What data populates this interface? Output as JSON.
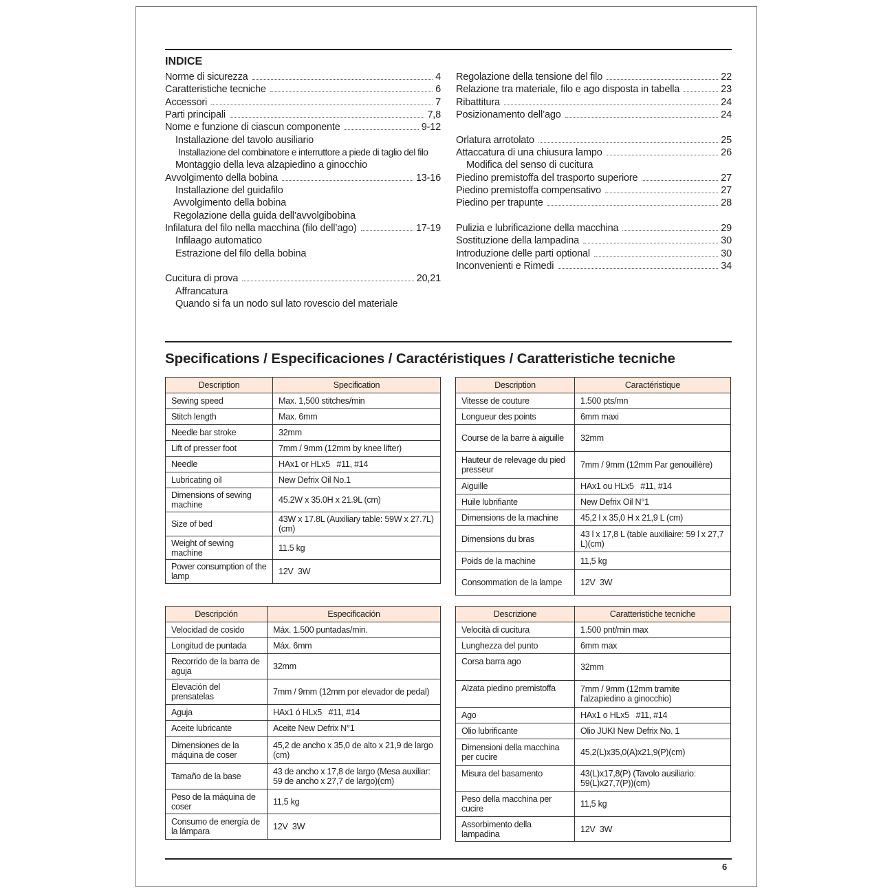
{
  "index": {
    "heading": "INDICE",
    "left": [
      {
        "label": "Norme di sicurezza",
        "page": "4",
        "level": 0
      },
      {
        "label": "Caratteristiche tecniche",
        "page": "6",
        "level": 0
      },
      {
        "label": "Accessori",
        "page": "7",
        "level": 0
      },
      {
        "label": "Parti principali",
        "page": "7,8",
        "level": 0
      },
      {
        "label": "Nome e funzione di ciascun componente",
        "page": "9-12",
        "level": 0
      },
      {
        "label": "Installazione del tavolo ausiliario",
        "page": "",
        "level": 1
      },
      {
        "label": "Installazione del combinatore e interruttore a piede di taglio del filo",
        "page": "",
        "level": 2
      },
      {
        "label": "Montaggio della leva alzapiedino a ginocchio",
        "page": "",
        "level": 1
      },
      {
        "label": "Avvolgimento della bobina",
        "page": "13-16",
        "level": 0
      },
      {
        "label": "Installazione del guidafilo",
        "page": "",
        "level": 1
      },
      {
        "label": "Avvolgimento della bobina",
        "page": "",
        "level": 3
      },
      {
        "label": "Regolazione della guida dell’avvolgibobina",
        "page": "",
        "level": 3
      },
      {
        "label": "Infilatura del filo nella macchina (filo dell’ago)",
        "page": "17-19",
        "level": 0
      },
      {
        "label": "Infilaago automatico",
        "page": "",
        "level": 1
      },
      {
        "label": "Estrazione del filo della bobina",
        "page": "",
        "level": 1
      },
      {
        "label": "",
        "page": "",
        "level": 0
      },
      {
        "label": "Cucitura di prova",
        "page": "20,21",
        "level": 0
      },
      {
        "label": "Affrancatura",
        "page": "",
        "level": 1
      },
      {
        "label": "Quando si fa un nodo sul lato rovescio del materiale",
        "page": "",
        "level": 1
      }
    ],
    "right": [
      {
        "label": "Regolazione della tensione del filo",
        "page": "22",
        "level": 0
      },
      {
        "label": "Relazione tra materiale, filo e ago disposta in tabella",
        "page": "23",
        "level": 0
      },
      {
        "label": "Ribattitura",
        "page": "24",
        "level": 0
      },
      {
        "label": "Posizionamento dell’ago",
        "page": "24",
        "level": 0
      },
      {
        "label": "",
        "page": "",
        "level": 0
      },
      {
        "label": "Orlatura arrotolato",
        "page": "25",
        "level": 0
      },
      {
        "label": "Attaccatura di una chiusura lampo",
        "page": "26",
        "level": 0
      },
      {
        "label": "Modifica del senso di cucitura",
        "page": "",
        "level": 1
      },
      {
        "label": "Piedino premistoffa del trasporto superiore",
        "page": "27",
        "level": 0
      },
      {
        "label": "Piedino premistoffa compensativo",
        "page": "27",
        "level": 0
      },
      {
        "label": "Piedino per trapunte",
        "page": "28",
        "level": 0
      },
      {
        "label": "",
        "page": "",
        "level": 0
      },
      {
        "label": "Pulizia e lubrificazione della macchina",
        "page": "29",
        "level": 0
      },
      {
        "label": "Sostituzione della lampadina",
        "page": "30",
        "level": 0
      },
      {
        "label": "Introduzione delle parti optional",
        "page": "30",
        "level": 0
      },
      {
        "label": "Inconvenienti e Rimedi",
        "page": "34",
        "level": 0
      }
    ]
  },
  "specs_title": "Specifications / Especificaciones / Caractéristiques / Caratteristiche tecniche",
  "header_fill": "#fde8da",
  "tables": [
    {
      "headers": [
        "Description",
        "Specification"
      ],
      "rows": [
        [
          "Sewing speed",
          "Max. 1,500 stitches/min"
        ],
        [
          "Stitch length",
          "Max. 6mm"
        ],
        [
          "Needle bar stroke",
          "32mm"
        ],
        [
          "Lift of presser foot",
          "7mm / 9mm (12mm by knee lifter)"
        ],
        [
          "Needle",
          "HAx1 or HLx5   #11, #14"
        ],
        [
          "Lubricating oil",
          "New Defrix Oil No.1"
        ],
        [
          "Dimensions of sewing machine",
          "45.2W x 35.0H x 21.9L (cm)"
        ],
        [
          "Size of bed",
          "43W x 17.8L (Auxiliary table: 59W x 27.7L)(cm)"
        ],
        [
          "Weight of sewing machine",
          "11.5 kg"
        ],
        [
          "Power consumption of the lamp",
          "12V  3W"
        ]
      ]
    },
    {
      "headers": [
        "Description",
        "Caractéristique"
      ],
      "rows": [
        [
          "Vitesse de couture",
          "1.500 pts/mn"
        ],
        [
          "Longueur des points",
          "6mm maxi"
        ],
        [
          "Course de la barre à aiguille",
          "32mm"
        ],
        [
          "Hauteur de relevage du pied presseur",
          "7mm / 9mm (12mm Par genouillère)"
        ],
        [
          "Aiguille",
          "HAx1 ou HLx5   #11, #14"
        ],
        [
          "Huile lubrifiante",
          "New Defrix Oil N°1"
        ],
        [
          "Dimensions de la machine",
          "45,2 l x 35,0 H x 21,9 L (cm)"
        ],
        [
          "Dimensions du bras",
          "43 l x 17,8 L (table auxiliaire: 59 l x 27,7 L)(cm)"
        ],
        [
          "Poids de la machine",
          "11,5 kg"
        ],
        [
          "Consommation de la lampe",
          "12V  3W"
        ]
      ]
    },
    {
      "headers": [
        "Descripción",
        "Especificación"
      ],
      "rows": [
        [
          "Velocidad de cosido",
          "Máx. 1.500 puntadas/min."
        ],
        [
          "Longitud de puntada",
          "Máx. 6mm"
        ],
        [
          "Recorrido de la barra de aguja",
          "32mm"
        ],
        [
          "Elevación del prensatelas",
          "7mm / 9mm (12mm por elevador de pedal)"
        ],
        [
          "Aguja",
          "HAx1 ó HLx5   #11, #14"
        ],
        [
          "Aceite lubricante",
          "Aceite New Defrix N°1"
        ],
        [
          "Dimensiones de la máquina de coser",
          "45,2 de ancho x 35,0 de alto x 21,9 de largo (cm)"
        ],
        [
          "Tamaño de la base",
          "43 de ancho x 17,8 de largo (Mesa auxiliar: 59 de ancho x 27,7 de largo)(cm)"
        ],
        [
          "Peso de la máquina de coser",
          "11,5 kg"
        ],
        [
          "Consumo de energía de la lámpara",
          "12V  3W"
        ]
      ]
    },
    {
      "headers": [
        "Descrizione",
        "Caratteristiche tecniche"
      ],
      "rows": [
        [
          "Velocità di cucitura",
          "1.500 pnt/min max"
        ],
        [
          "Lunghezza del punto",
          "6mm max"
        ],
        [
          "Corsa barra ago",
          "32mm"
        ],
        [
          "Alzata piedino premistoffa",
          "7mm / 9mm (12mm tramite l'alzapiedino a ginocchio)"
        ],
        [
          "Ago",
          "HAx1 o HLx5   #11, #14"
        ],
        [
          "Olio lubrificante",
          "Olio JUKI New Defrix No. 1"
        ],
        [
          "Dimensioni della macchina per cucire",
          "45,2(L)x35,0(A)x21,9(P)(cm)"
        ],
        [
          "Misura del basamento",
          "43(L)x17,8(P) (Tavolo ausiliario: 59(L)x27,7(P))(cm)"
        ],
        [
          "Peso della macchina per cucire",
          "11,5 kg"
        ],
        [
          "Assorbimento della lampadina",
          "12V  3W"
        ]
      ]
    }
  ],
  "page_number": "6"
}
